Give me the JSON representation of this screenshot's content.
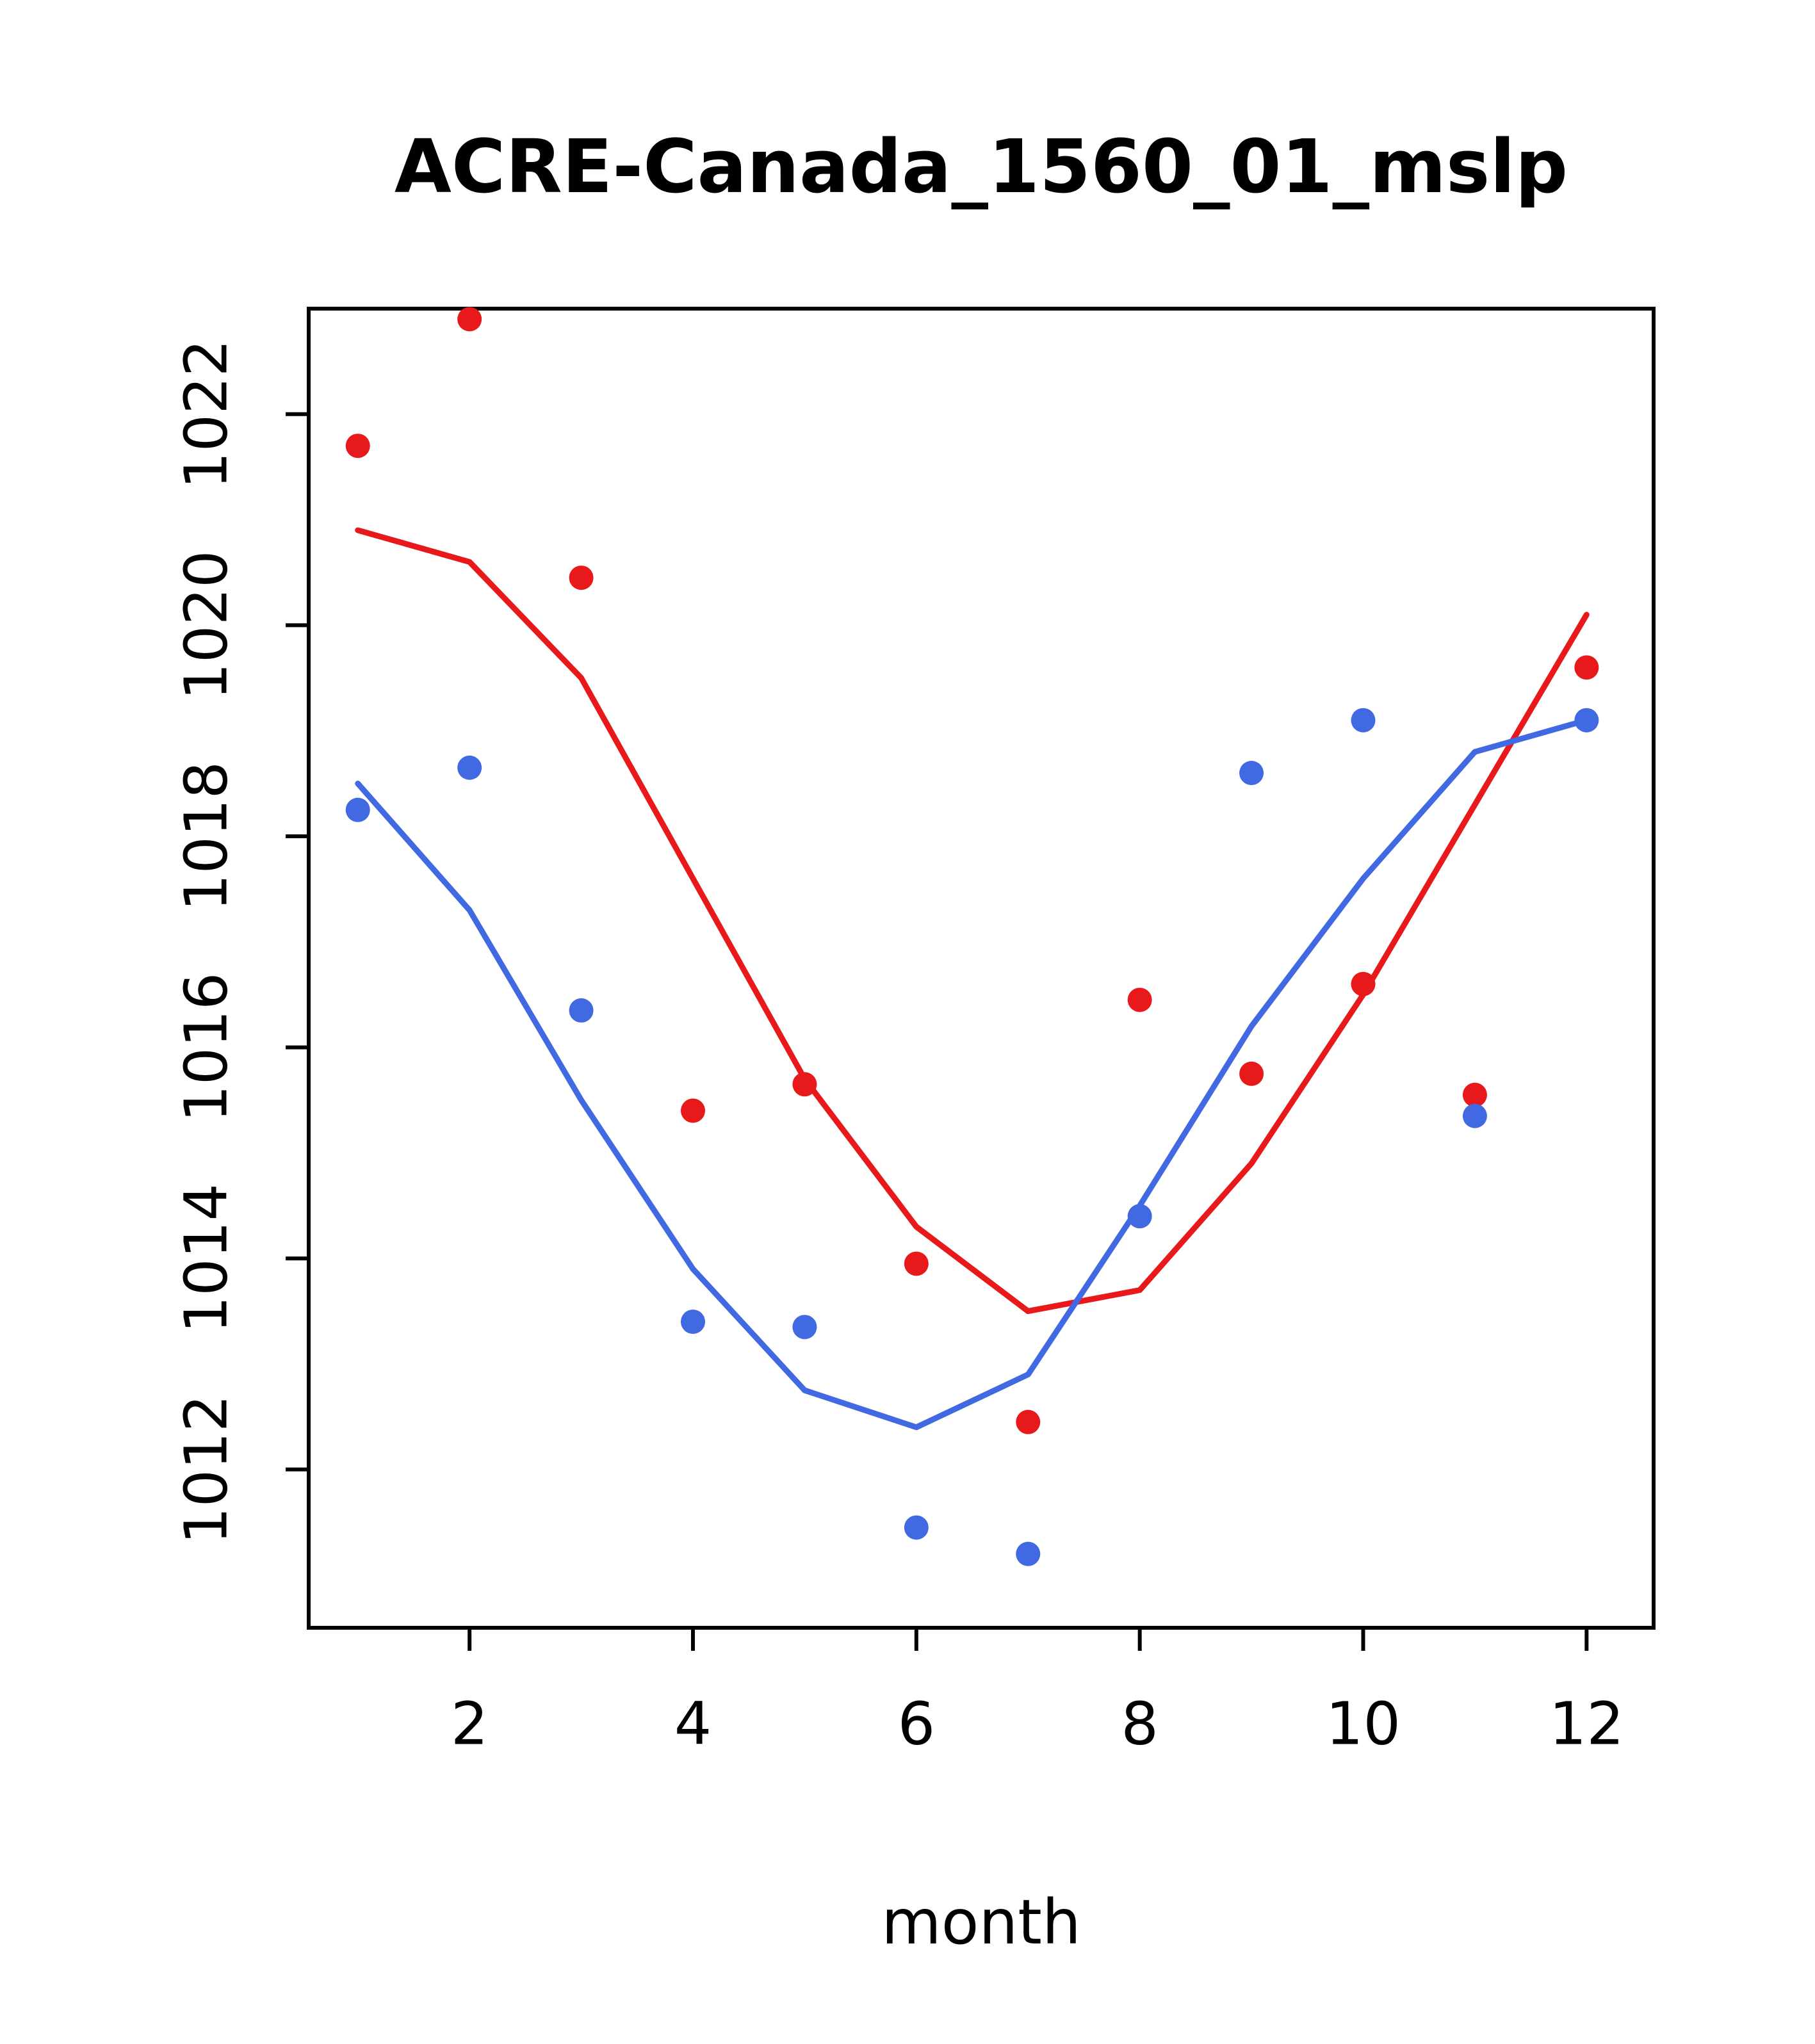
{
  "page": {
    "background": "#ffffff"
  },
  "chart_data": {
    "type": "scatter",
    "title": "ACRE-Canada_1560_01_mslp",
    "xlabel": "month",
    "ylabel": "",
    "grid": false,
    "legend": "none",
    "x": [
      1,
      2,
      3,
      4,
      5,
      6,
      7,
      8,
      9,
      10,
      11,
      12
    ],
    "x_ticks": [
      2,
      4,
      6,
      8,
      10,
      12
    ],
    "y_ticks": [
      1012,
      1014,
      1016,
      1018,
      1020,
      1022
    ],
    "xlim": [
      0.56,
      12.6
    ],
    "ylim": [
      1010.5,
      1023.0
    ],
    "colors": {
      "red": "#e8191a",
      "blue": "#4169e1",
      "axis": "#000000"
    },
    "series": [
      {
        "name": "red-smooth-line",
        "kind": "line",
        "color": "#e8191a",
        "values": [
          1020.9,
          1020.6,
          1019.5,
          1017.6,
          1015.7,
          1014.3,
          1013.5,
          1013.7,
          1014.9,
          1016.5,
          1018.3,
          1020.1
        ]
      },
      {
        "name": "blue-smooth-line",
        "kind": "line",
        "color": "#4169e1",
        "values": [
          1018.5,
          1017.3,
          1015.5,
          1013.9,
          1012.75,
          1012.4,
          1012.9,
          1014.5,
          1016.2,
          1017.6,
          1018.8,
          1019.1
        ]
      },
      {
        "name": "red-points",
        "kind": "scatter",
        "color": "#e8191a",
        "values": [
          1021.7,
          1022.9,
          1020.45,
          1015.4,
          1015.65,
          1013.95,
          1012.45,
          1016.45,
          1015.75,
          1016.6,
          1015.55,
          1019.6
        ]
      },
      {
        "name": "blue-points",
        "kind": "scatter",
        "color": "#4169e1",
        "values": [
          1018.25,
          1018.65,
          1016.35,
          1013.4,
          1013.35,
          1011.45,
          1011.2,
          1014.4,
          1018.6,
          1019.1,
          1015.35,
          1019.1
        ]
      }
    ]
  }
}
